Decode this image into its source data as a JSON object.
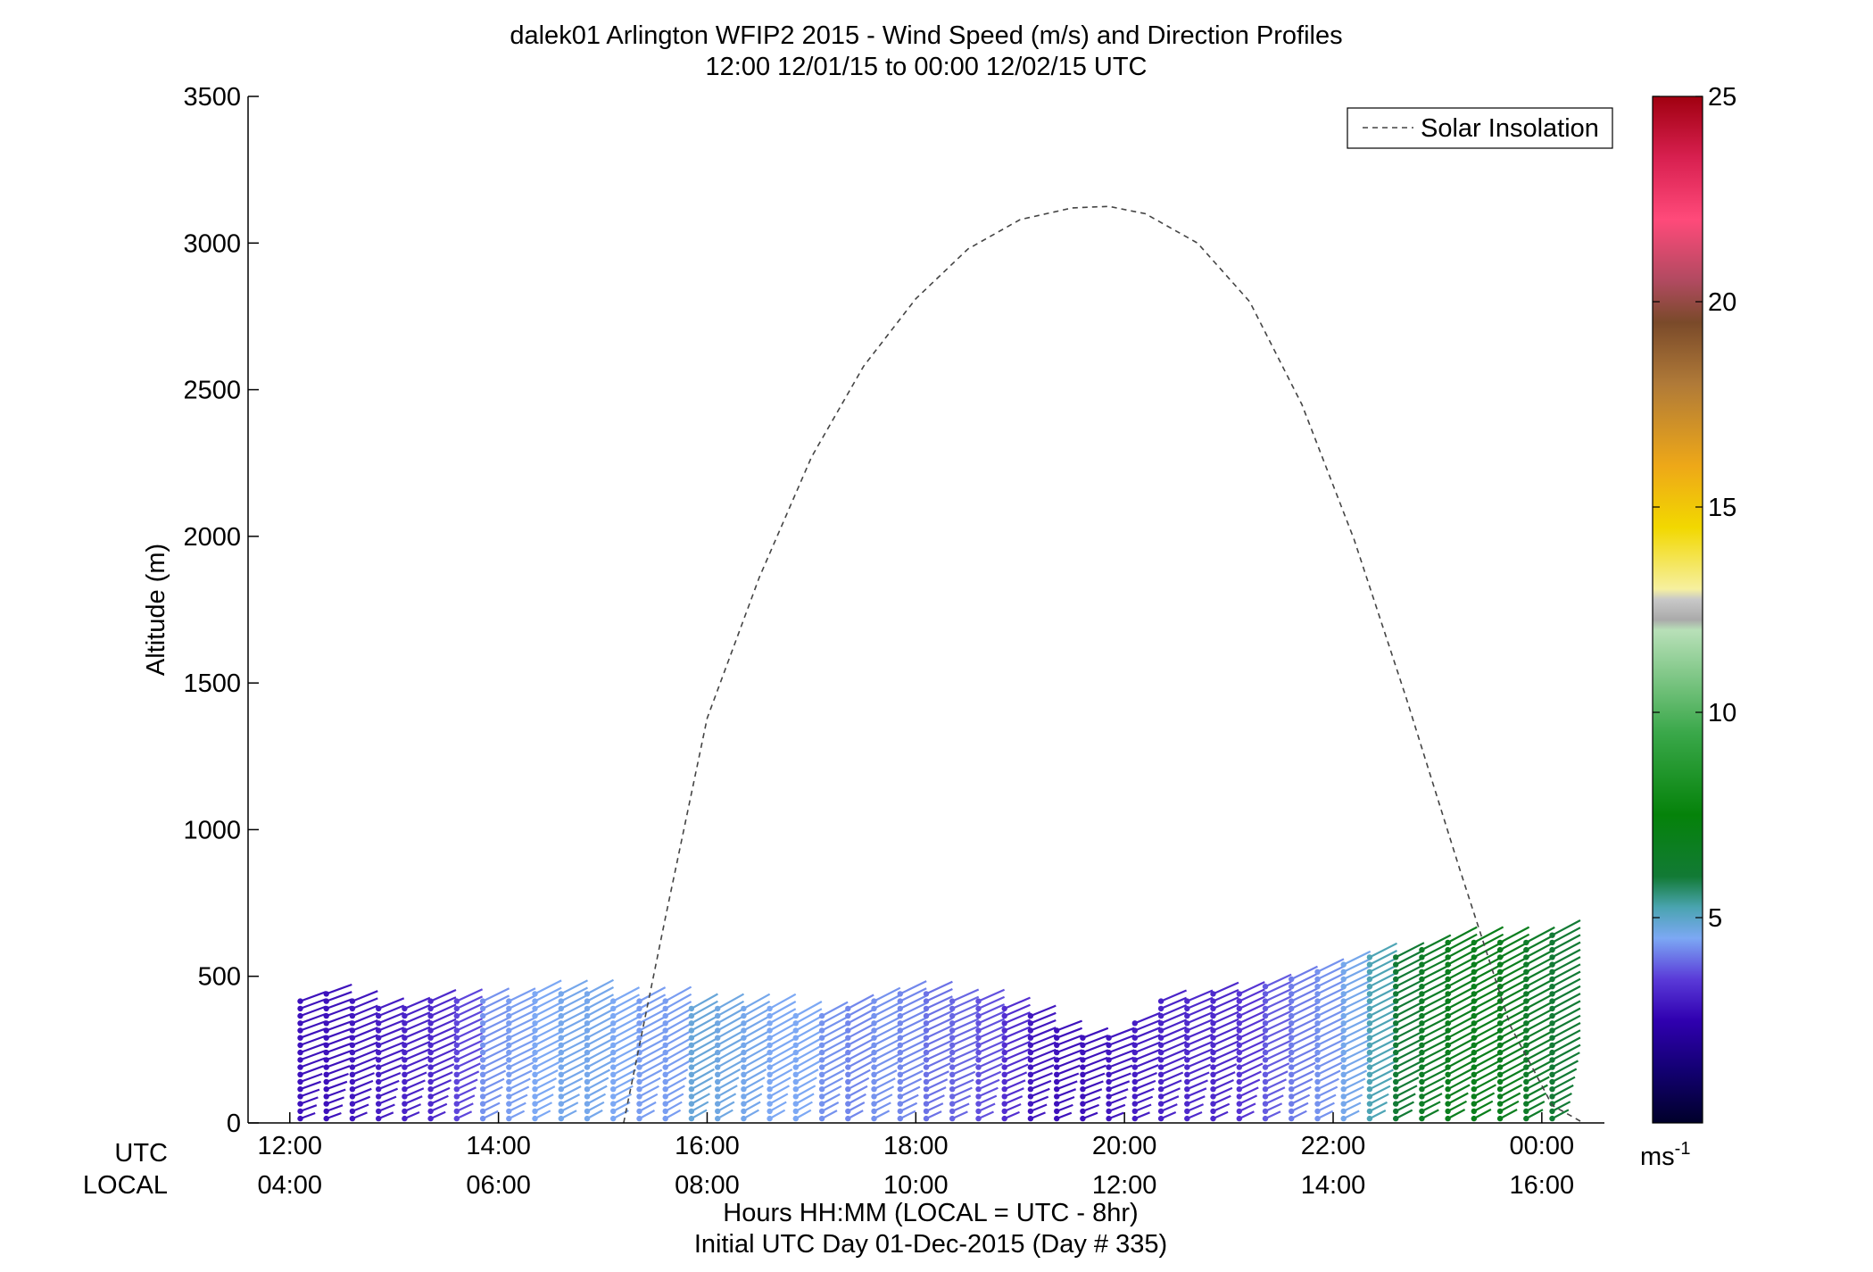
{
  "chart_data": {
    "type": "scatter",
    "title": "dalek01 Arlington WFIP2 2015 - Wind Speed (m/s) and Direction Profiles",
    "subtitle": "12:00 12/01/15 to 00:00 12/02/15  UTC",
    "ylabel": "Altitude (m)",
    "xlabel": "Hours HH:MM  (LOCAL = UTC - 8hr)",
    "xlabel2": "Initial UTC Day 01-Dec-2015 (Day # 335)",
    "row_label_utc": "UTC",
    "row_label_local": "LOCAL",
    "ylim": [
      0,
      3500
    ],
    "y_ticks": [
      "0",
      "500",
      "1000",
      "1500",
      "2000",
      "2500",
      "3000",
      "3500"
    ],
    "xlim_hours": [
      11.6,
      24.6
    ],
    "utc_ticks": [
      "12:00",
      "14:00",
      "16:00",
      "18:00",
      "20:00",
      "22:00",
      "00:00"
    ],
    "local_ticks": [
      "04:00",
      "06:00",
      "08:00",
      "10:00",
      "12:00",
      "14:00",
      "16:00"
    ],
    "legend": {
      "label": "Solar Insolation",
      "placement": "top-right"
    },
    "colorbar": {
      "min": 0,
      "max": 25,
      "ticks": [
        "5",
        "10",
        "15",
        "20",
        "25"
      ],
      "unit": "ms",
      "unit_exp": "-1"
    },
    "solar_insolation": {
      "hours": [
        15.2,
        15.6,
        16.0,
        16.5,
        17.0,
        17.5,
        18.0,
        18.5,
        19.0,
        19.5,
        19.85,
        20.2,
        20.7,
        21.2,
        21.7,
        22.2,
        22.7,
        23.2,
        23.7,
        24.1,
        24.4
      ],
      "values": [
        0,
        700,
        1380,
        1860,
        2270,
        2580,
        2810,
        2980,
        3080,
        3120,
        3125,
        3100,
        3000,
        2800,
        2450,
        1990,
        1450,
        880,
        330,
        60,
        0
      ]
    },
    "profiles": {
      "start_hour": 12.1,
      "step_hours": 0.25,
      "count": 49,
      "top_altitude_m": [
        425,
        445,
        430,
        395,
        400,
        425,
        430,
        415,
        430,
        455,
        450,
        440,
        430,
        425,
        415,
        395,
        395,
        390,
        390,
        385,
        385,
        395,
        425,
        460,
        450,
        435,
        430,
        400,
        365,
        325,
        310,
        310,
        355,
        425,
        435,
        455,
        460,
        470,
        500,
        530,
        555,
        575,
        580,
        600,
        615,
        620,
        625,
        630,
        640
      ],
      "speed_ms": [
        2.8,
        2.8,
        2.9,
        3.0,
        3.1,
        3.2,
        3.6,
        4.3,
        4.4,
        4.5,
        4.6,
        4.6,
        4.5,
        4.4,
        4.4,
        4.8,
        4.7,
        4.6,
        4.5,
        4.5,
        4.3,
        4.2,
        4.3,
        4.2,
        4.0,
        3.9,
        3.7,
        3.3,
        2.9,
        2.8,
        2.8,
        2.9,
        3.0,
        3.1,
        3.2,
        3.2,
        3.4,
        3.8,
        4.1,
        4.3,
        4.6,
        5.2,
        6.0,
        6.5,
        6.8,
        6.9,
        6.8,
        6.4,
        6.0
      ],
      "direction_deg": [
        250,
        250,
        248,
        248,
        247,
        246,
        245,
        244,
        244,
        243,
        243,
        242,
        242,
        242,
        241,
        241,
        241,
        241,
        241,
        241,
        242,
        242,
        243,
        244,
        245,
        246,
        246,
        247,
        248,
        249,
        249,
        249,
        248,
        247,
        247,
        246,
        245,
        245,
        244,
        244,
        244,
        243,
        243,
        243,
        242,
        242,
        242,
        242,
        242
      ]
    }
  }
}
